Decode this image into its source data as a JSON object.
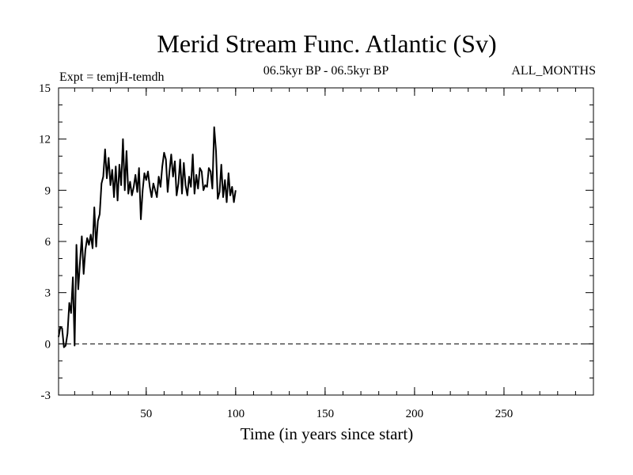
{
  "chart_data": {
    "type": "line",
    "title": "Merid Stream Func. Atlantic (Sv)",
    "subtitle_left": "Expt = temjH-temdh",
    "subtitle_center": "06.5kyr BP - 06.5kyr BP",
    "subtitle_right": "ALL_MONTHS",
    "xlabel": "Time (in years since start)",
    "ylabel": "",
    "xlim": [
      1,
      300
    ],
    "ylim": [
      -3,
      15
    ],
    "x_ticks": [
      50,
      100,
      150,
      200,
      250
    ],
    "y_ticks": [
      -3,
      0,
      3,
      6,
      9,
      12,
      15
    ],
    "x_tick_labels": [
      "50",
      "100",
      "150",
      "200",
      "250"
    ],
    "y_tick_labels": [
      "-3",
      "0",
      "3",
      "6",
      "9",
      "12",
      "15"
    ],
    "zero_line": {
      "y": 0,
      "style": "dashed"
    },
    "series": [
      {
        "name": "Merid Stream Func. Atlantic",
        "color": "#000000",
        "x_start": 1,
        "x_step": 1,
        "values": [
          0.4,
          1.0,
          0.9,
          -0.2,
          -0.1,
          0.6,
          2.4,
          1.8,
          3.9,
          -0.1,
          5.8,
          3.2,
          4.8,
          6.3,
          4.1,
          5.5,
          6.2,
          5.8,
          6.4,
          5.6,
          8.0,
          5.7,
          7.2,
          7.6,
          9.4,
          9.8,
          11.4,
          9.7,
          10.9,
          9.3,
          10.2,
          8.6,
          10.4,
          8.4,
          10.5,
          9.3,
          12.0,
          9.0,
          11.3,
          8.8,
          9.5,
          8.7,
          9.2,
          9.9,
          8.9,
          10.3,
          7.3,
          9.0,
          10.0,
          9.6,
          10.1,
          9.2,
          8.6,
          9.4,
          9.0,
          8.6,
          9.8,
          9.2,
          10.4,
          11.2,
          10.8,
          8.9,
          10.1,
          11.1,
          9.8,
          10.7,
          8.7,
          9.4,
          10.8,
          8.8,
          10.6,
          9.3,
          8.7,
          9.8,
          9.2,
          11.1,
          8.8,
          9.9,
          9.1,
          10.3,
          10.1,
          9.0,
          9.3,
          9.2,
          10.3,
          10.1,
          9.1,
          12.7,
          11.3,
          8.5,
          8.9,
          10.5,
          8.6,
          9.6,
          8.3,
          10.0,
          8.7,
          9.2,
          8.3,
          9.0
        ]
      }
    ]
  }
}
